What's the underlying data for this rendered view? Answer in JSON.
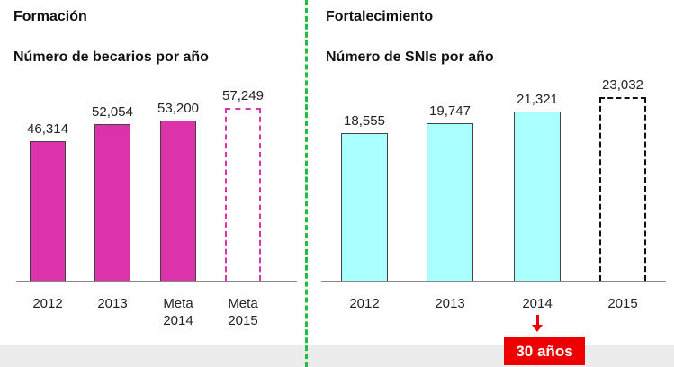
{
  "chart_data": [
    {
      "type": "bar",
      "section": "Formación",
      "title": "Número de becarios por año",
      "categories": [
        "2012",
        "2013",
        "Meta 2014",
        "Meta 2015"
      ],
      "values": [
        46314,
        52054,
        53200,
        57249
      ],
      "value_labels": [
        "46,314",
        "52,054",
        "53,200",
        "57,249"
      ],
      "color": "#dd33aa",
      "outline": [
        false,
        false,
        false,
        true
      ],
      "ylim": [
        0,
        60000
      ]
    },
    {
      "type": "bar",
      "section": "Fortalecimiento",
      "title": "Número de SNIs por año",
      "categories": [
        "2012",
        "2013",
        "2014",
        "2015"
      ],
      "values": [
        18555,
        19747,
        21321,
        23032
      ],
      "value_labels": [
        "18,555",
        "19,747",
        "21,321",
        "23,032"
      ],
      "color": "#aaffff",
      "outline": [
        false,
        false,
        false,
        true
      ],
      "ylim": [
        0,
        25000
      ],
      "annotation": "30 años"
    }
  ]
}
